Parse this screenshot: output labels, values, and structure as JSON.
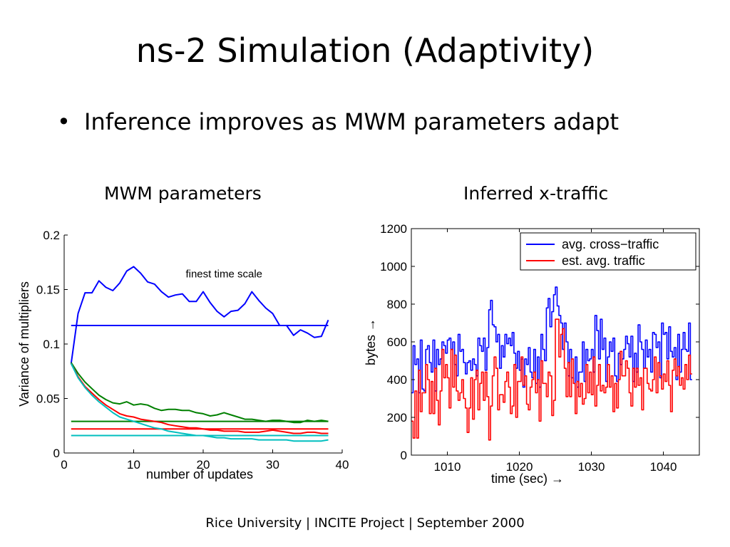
{
  "slide": {
    "title": "ns-2 Simulation (Adaptivity)",
    "bullet": "Inference improves as MWM parameters adapt",
    "left_panel_title": "MWM parameters",
    "right_panel_title": "Inferred x-traffic",
    "footer": "Rice University | INCITE Project | September 2000"
  },
  "chart_data": [
    {
      "type": "line",
      "xlabel": "number of updates",
      "ylabel": "Variance of multipliers",
      "xlim": [
        0,
        40
      ],
      "ylim": [
        0,
        0.2
      ],
      "xticks": [
        0,
        10,
        20,
        30,
        40
      ],
      "xtick_labels": [
        "0",
        "10",
        "20",
        "30",
        "40"
      ],
      "yticks": [
        0,
        0.05,
        0.1,
        0.15,
        0.2
      ],
      "ytick_labels": [
        "0",
        "0.05",
        "0.1",
        "0.15",
        "0.2"
      ],
      "grid": false,
      "annotations": [
        {
          "text": "finest time scale",
          "x": 23,
          "y": 0.161
        }
      ],
      "series": [
        {
          "color": "#0000ff",
          "x": [
            1,
            2,
            3,
            4,
            5,
            6,
            7,
            8,
            9,
            10,
            11,
            12,
            13,
            14,
            15,
            16,
            17,
            18,
            19,
            20,
            21,
            22,
            23,
            24,
            25,
            26,
            27,
            28,
            29,
            30,
            31,
            32,
            33,
            34,
            35,
            36,
            37,
            38
          ],
          "y": [
            0.082,
            0.128,
            0.147,
            0.147,
            0.158,
            0.152,
            0.149,
            0.156,
            0.167,
            0.171,
            0.165,
            0.157,
            0.155,
            0.148,
            0.143,
            0.145,
            0.146,
            0.139,
            0.139,
            0.148,
            0.138,
            0.13,
            0.125,
            0.13,
            0.131,
            0.137,
            0.148,
            0.14,
            0.133,
            0.128,
            0.117,
            0.117,
            0.108,
            0.113,
            0.11,
            0.106,
            0.107,
            0.122
          ]
        },
        {
          "color": "#0000ff",
          "x": [
            1,
            38
          ],
          "y": [
            0.117,
            0.117
          ]
        },
        {
          "color": "#008000",
          "x": [
            1,
            2,
            3,
            4,
            5,
            6,
            7,
            8,
            9,
            10,
            11,
            12,
            13,
            14,
            15,
            16,
            17,
            18,
            19,
            20,
            21,
            22,
            23,
            24,
            25,
            26,
            27,
            28,
            29,
            30,
            31,
            32,
            33,
            34,
            35,
            36,
            37,
            38
          ],
          "y": [
            0.083,
            0.073,
            0.065,
            0.059,
            0.053,
            0.049,
            0.046,
            0.045,
            0.047,
            0.044,
            0.045,
            0.044,
            0.041,
            0.039,
            0.04,
            0.04,
            0.039,
            0.039,
            0.037,
            0.036,
            0.034,
            0.035,
            0.037,
            0.035,
            0.033,
            0.031,
            0.031,
            0.03,
            0.029,
            0.03,
            0.03,
            0.029,
            0.028,
            0.028,
            0.03,
            0.029,
            0.03,
            0.029
          ]
        },
        {
          "color": "#008000",
          "x": [
            1,
            38
          ],
          "y": [
            0.029,
            0.029
          ]
        },
        {
          "color": "#ff0000",
          "x": [
            1,
            2,
            3,
            4,
            5,
            6,
            7,
            8,
            9,
            10,
            11,
            12,
            13,
            14,
            15,
            16,
            17,
            18,
            19,
            20,
            21,
            22,
            23,
            24,
            25,
            26,
            27,
            28,
            29,
            30,
            31,
            32,
            33,
            34,
            35,
            36,
            37,
            38
          ],
          "y": [
            0.082,
            0.07,
            0.061,
            0.055,
            0.049,
            0.044,
            0.04,
            0.036,
            0.034,
            0.033,
            0.031,
            0.03,
            0.029,
            0.028,
            0.026,
            0.025,
            0.024,
            0.023,
            0.023,
            0.022,
            0.021,
            0.021,
            0.02,
            0.02,
            0.02,
            0.019,
            0.019,
            0.019,
            0.02,
            0.021,
            0.02,
            0.019,
            0.018,
            0.018,
            0.019,
            0.019,
            0.018,
            0.018
          ]
        },
        {
          "color": "#ff0000",
          "x": [
            1,
            38
          ],
          "y": [
            0.022,
            0.022
          ]
        },
        {
          "color": "#00bfbf",
          "x": [
            1,
            2,
            3,
            4,
            5,
            6,
            7,
            8,
            9,
            10,
            11,
            12,
            13,
            14,
            15,
            16,
            17,
            18,
            19,
            20,
            21,
            22,
            23,
            24,
            25,
            26,
            27,
            28,
            29,
            30,
            31,
            32,
            33,
            34,
            35,
            36,
            37,
            38
          ],
          "y": [
            0.082,
            0.069,
            0.06,
            0.053,
            0.047,
            0.042,
            0.037,
            0.033,
            0.031,
            0.029,
            0.027,
            0.025,
            0.023,
            0.022,
            0.02,
            0.019,
            0.018,
            0.017,
            0.016,
            0.016,
            0.015,
            0.014,
            0.014,
            0.013,
            0.013,
            0.013,
            0.013,
            0.012,
            0.012,
            0.012,
            0.012,
            0.012,
            0.011,
            0.011,
            0.011,
            0.011,
            0.011,
            0.012
          ]
        },
        {
          "color": "#00bfbf",
          "x": [
            1,
            38
          ],
          "y": [
            0.016,
            0.016
          ]
        }
      ]
    },
    {
      "type": "line",
      "step": true,
      "xlabel": "time (sec) →",
      "ylabel": "bytes →",
      "xlim": [
        1005,
        1045
      ],
      "ylim": [
        0,
        1200
      ],
      "xticks": [
        1010,
        1020,
        1030,
        1040
      ],
      "xtick_labels": [
        "1010",
        "1020",
        "1030",
        "1040"
      ],
      "yticks": [
        0,
        200,
        400,
        600,
        800,
        1000,
        1200
      ],
      "ytick_labels": [
        "0",
        "200",
        "400",
        "600",
        "800",
        "1000",
        "1200"
      ],
      "grid": false,
      "legend": {
        "placement": "top-right",
        "entries": [
          "avg. cross−traffic",
          "est. avg. traffic"
        ]
      },
      "series": [
        {
          "name": "avg. cross−traffic",
          "color": "#0000ff",
          "x_start": 1005,
          "dx": 0.25,
          "y": [
            330,
            580,
            480,
            510,
            330,
            610,
            350,
            340,
            560,
            580,
            490,
            440,
            610,
            340,
            560,
            480,
            510,
            600,
            580,
            540,
            610,
            620,
            560,
            600,
            480,
            420,
            640,
            550,
            560,
            490,
            430,
            490,
            500,
            450,
            510,
            480,
            420,
            620,
            580,
            550,
            620,
            450,
            570,
            770,
            820,
            690,
            680,
            600,
            640,
            460,
            580,
            520,
            640,
            590,
            620,
            580,
            650,
            540,
            460,
            550,
            450,
            510,
            360,
            510,
            480,
            570,
            440,
            410,
            560,
            380,
            520,
            360,
            640,
            560,
            500,
            780,
            830,
            680,
            760,
            850,
            890,
            790,
            740,
            700,
            560,
            700,
            600,
            420,
            560,
            410,
            380,
            520,
            360,
            440,
            440,
            600,
            390,
            560,
            500,
            510,
            560,
            440,
            740,
            660,
            510,
            720,
            560,
            620,
            390,
            520,
            600,
            550,
            620,
            420,
            390,
            540,
            480,
            510,
            560,
            630,
            590,
            520,
            630,
            390,
            540,
            440,
            690,
            600,
            560,
            460,
            610,
            520,
            560,
            440,
            650,
            640,
            570,
            600,
            410,
            700,
            640,
            650,
            510,
            680,
            550,
            520,
            570,
            400,
            640,
            440,
            560,
            650,
            560,
            550,
            700,
            400
          ]
        },
        {
          "name": "est. avg. traffic",
          "color": "#ff0000",
          "x_start": 1005,
          "dx": 0.25,
          "y": [
            180,
            90,
            340,
            90,
            450,
            230,
            330,
            330,
            480,
            400,
            220,
            390,
            220,
            460,
            290,
            160,
            340,
            560,
            410,
            480,
            410,
            250,
            560,
            360,
            530,
            340,
            290,
            330,
            400,
            300,
            250,
            120,
            250,
            410,
            190,
            400,
            450,
            240,
            380,
            440,
            290,
            440,
            310,
            80,
            260,
            420,
            520,
            460,
            240,
            320,
            320,
            280,
            390,
            440,
            360,
            220,
            260,
            480,
            200,
            390,
            390,
            520,
            370,
            420,
            270,
            240,
            360,
            400,
            440,
            330,
            400,
            180,
            500,
            380,
            380,
            310,
            440,
            420,
            210,
            290,
            720,
            720,
            520,
            640,
            670,
            460,
            310,
            490,
            310,
            510,
            380,
            220,
            390,
            310,
            380,
            270,
            300,
            480,
            330,
            440,
            320,
            520,
            260,
            370,
            480,
            340,
            370,
            330,
            360,
            480,
            360,
            420,
            230,
            380,
            250,
            400,
            550,
            420,
            420,
            500,
            460,
            330,
            260,
            460,
            360,
            460,
            370,
            410,
            240,
            460,
            460,
            380,
            350,
            340,
            400,
            520,
            330,
            490,
            420,
            350,
            430,
            390,
            500,
            370,
            230,
            450,
            510,
            420,
            470,
            370,
            410,
            350,
            480,
            400,
            530,
            430
          ]
        }
      ]
    }
  ]
}
